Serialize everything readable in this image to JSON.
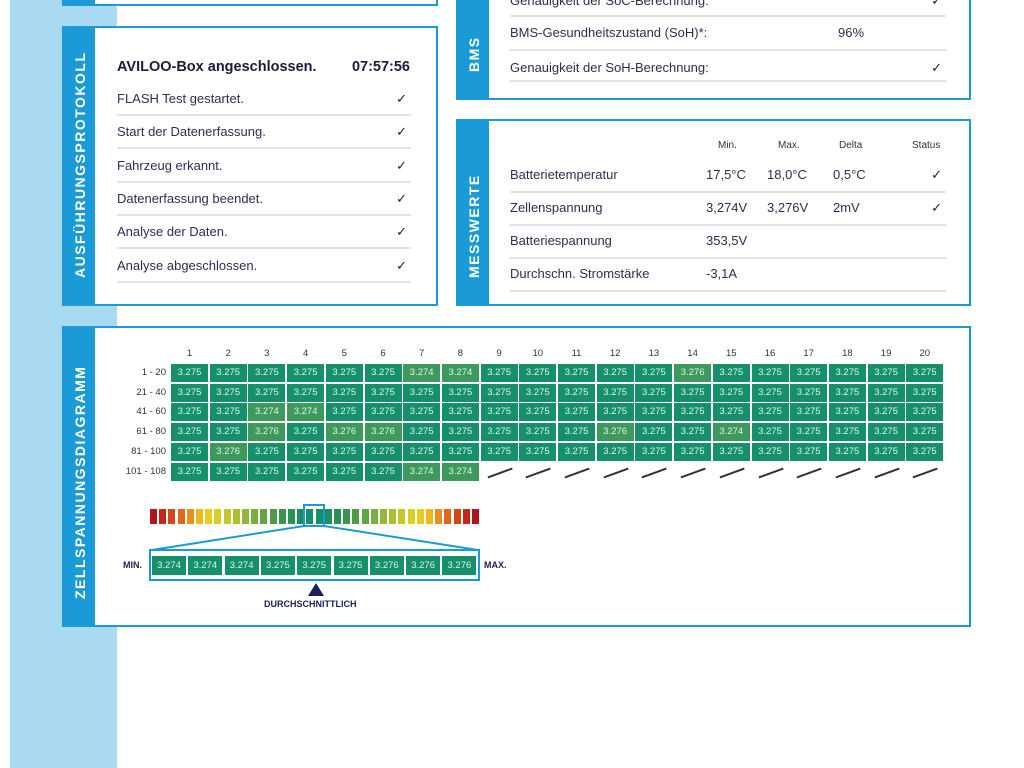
{
  "bms": {
    "label": "BMS",
    "rows": [
      {
        "label": "Genauigkeit der SoC-Berechnung:",
        "value": "",
        "check": "✓"
      },
      {
        "label": "BMS-Gesundheitszustand (SoH)*:",
        "value": "96%",
        "check": ""
      },
      {
        "label": "Genauigkeit der SoH-Berechnung:",
        "value": "",
        "check": "✓"
      }
    ]
  },
  "protokoll": {
    "label": "AUSFÜHRUNGSPROTOKOLL",
    "title": "AVILOO-Box angeschlossen.",
    "time": "07:57:56",
    "items": [
      {
        "label": "FLASH Test gestartet.",
        "check": "✓"
      },
      {
        "label": "Start der Datenerfassung.",
        "check": "✓"
      },
      {
        "label": "Fahrzeug erkannt.",
        "check": "✓"
      },
      {
        "label": "Datenerfassung beendet.",
        "check": "✓"
      },
      {
        "label": "Analyse der Daten.",
        "check": "✓"
      },
      {
        "label": "Analyse abgeschlossen.",
        "check": "✓"
      }
    ]
  },
  "messwerte": {
    "label": "MESSWERTE",
    "headers": [
      "Min.",
      "Max.",
      "Delta",
      "Status"
    ],
    "rows": [
      {
        "label": "Batterietemperatur",
        "min": "17,5°C",
        "max": "18,0°C",
        "delta": "0,5°C",
        "status": "✓"
      },
      {
        "label": "Zellenspannung",
        "min": "3,274V",
        "max": "3,276V",
        "delta": "2mV",
        "status": "✓"
      },
      {
        "label": "Batteriespannung",
        "min": "353,5V",
        "max": "",
        "delta": "",
        "status": ""
      },
      {
        "label": "Durchschn. Stromstärke",
        "min": "-3,1A",
        "max": "",
        "delta": "",
        "status": ""
      }
    ]
  },
  "diagram": {
    "label": "ZELLSPANNUNGSDIAGRAMM",
    "columns": [
      "1",
      "2",
      "3",
      "4",
      "5",
      "6",
      "7",
      "8",
      "9",
      "10",
      "11",
      "12",
      "13",
      "14",
      "15",
      "16",
      "17",
      "18",
      "19",
      "20"
    ],
    "row_labels": [
      "1 - 20",
      "21 - 40",
      "41 - 60",
      "61 - 80",
      "81 - 100",
      "101 - 108"
    ],
    "rows": [
      [
        "3.275",
        "3.275",
        "3.275",
        "3.275",
        "3.275",
        "3.275",
        "3.274",
        "3.274",
        "3.275",
        "3.275",
        "3.275",
        "3.275",
        "3.275",
        "3.276",
        "3.275",
        "3.275",
        "3.275",
        "3.275",
        "3.275",
        "3.275"
      ],
      [
        "3.275",
        "3.275",
        "3.275",
        "3.275",
        "3.275",
        "3.275",
        "3.275",
        "3.275",
        "3.275",
        "3.275",
        "3.275",
        "3.275",
        "3.275",
        "3.275",
        "3.275",
        "3.275",
        "3.275",
        "3.275",
        "3.275",
        "3.275"
      ],
      [
        "3.275",
        "3.275",
        "3.274",
        "3.274",
        "3.275",
        "3.275",
        "3.275",
        "3.275",
        "3.275",
        "3.275",
        "3.275",
        "3.275",
        "3.275",
        "3.275",
        "3.275",
        "3.275",
        "3.275",
        "3.275",
        "3.275",
        "3.275"
      ],
      [
        "3.275",
        "3.275",
        "3.276",
        "3.275",
        "3.276",
        "3.276",
        "3.275",
        "3.275",
        "3.275",
        "3.275",
        "3.275",
        "3.276",
        "3.275",
        "3.275",
        "3.274",
        "3.275",
        "3.275",
        "3.275",
        "3.275",
        "3.275"
      ],
      [
        "3.275",
        "3.276",
        "3.275",
        "3.275",
        "3.275",
        "3.275",
        "3.275",
        "3.275",
        "3.275",
        "3.275",
        "3.275",
        "3.275",
        "3.275",
        "3.275",
        "3.275",
        "3.275",
        "3.275",
        "3.275",
        "3.275",
        "3.275"
      ],
      [
        "3.275",
        "3.275",
        "3.275",
        "3.275",
        "3.275",
        "3.275",
        "3.274",
        "3.274"
      ]
    ],
    "scale": [
      "3.274",
      "3.274",
      "3.274",
      "3.275",
      "3.275",
      "3.275",
      "3.276",
      "3.276",
      "3.276"
    ],
    "min_label": "MIN.",
    "max_label": "MAX.",
    "avg_label": "DURCHSCHNITTLICH",
    "colors": {
      "avg": "#15906a",
      "off": "#3e9a5c",
      "border": "#1a9ad6"
    }
  }
}
